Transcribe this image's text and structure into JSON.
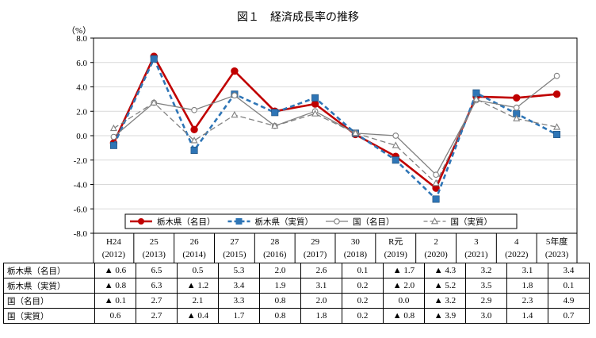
{
  "chart_data": {
    "type": "line",
    "title": "図１　経済成長率の推移",
    "ylabel": "（%）",
    "ylim": [
      -8.0,
      8.0
    ],
    "yticks": [
      "8.0",
      "6.0",
      "4.0",
      "2.0",
      "0.0",
      "-2.0",
      "-4.0",
      "-6.0",
      "-8.0"
    ],
    "ytick_values": [
      8,
      6,
      4,
      2,
      0,
      -2,
      -4,
      -6,
      -8
    ],
    "categories": [
      {
        "era": "H24",
        "year": "(2012)"
      },
      {
        "era": "25",
        "year": "(2013)"
      },
      {
        "era": "26",
        "year": "(2014)"
      },
      {
        "era": "27",
        "year": "(2015)"
      },
      {
        "era": "28",
        "year": "(2016)"
      },
      {
        "era": "29",
        "year": "(2017)"
      },
      {
        "era": "30",
        "year": "(2018)"
      },
      {
        "era": "R元",
        "year": "(2019)"
      },
      {
        "era": "2",
        "year": "(2020)"
      },
      {
        "era": "3",
        "year": "(2021)"
      },
      {
        "era": "4",
        "year": "(2022)"
      },
      {
        "era": "5年度",
        "year": "(2023)"
      }
    ],
    "legend_position": "bottom-inside",
    "series": [
      {
        "name": "栃木県（名目）",
        "color": "#c00000",
        "style": "solid-bold",
        "marker": "circle",
        "values": [
          -0.6,
          6.5,
          0.5,
          5.3,
          2.0,
          2.6,
          0.1,
          -1.7,
          -4.3,
          3.2,
          3.1,
          3.4
        ],
        "labels": [
          "▲ 0.6",
          "6.5",
          "0.5",
          "5.3",
          "2.0",
          "2.6",
          "0.1",
          "▲ 1.7",
          "▲ 4.3",
          "3.2",
          "3.1",
          "3.4"
        ]
      },
      {
        "name": "栃木県（実質）",
        "color": "#2e75b6",
        "style": "dashed-bold",
        "marker": "square",
        "values": [
          -0.8,
          6.3,
          -1.2,
          3.4,
          1.9,
          3.1,
          0.2,
          -2.0,
          -5.2,
          3.5,
          1.8,
          0.1
        ],
        "labels": [
          "▲ 0.8",
          "6.3",
          "▲ 1.2",
          "3.4",
          "1.9",
          "3.1",
          "0.2",
          "▲ 2.0",
          "▲ 5.2",
          "3.5",
          "1.8",
          "0.1"
        ]
      },
      {
        "name": "国（名目）",
        "color": "#808080",
        "style": "solid",
        "marker": "circle-open",
        "values": [
          -0.1,
          2.7,
          2.1,
          3.3,
          0.8,
          2.0,
          0.2,
          0.0,
          -3.2,
          2.9,
          2.3,
          4.9
        ],
        "labels": [
          "▲ 0.1",
          "2.7",
          "2.1",
          "3.3",
          "0.8",
          "2.0",
          "0.2",
          "0.0",
          "▲ 3.2",
          "2.9",
          "2.3",
          "4.9"
        ]
      },
      {
        "name": "国（実質）",
        "color": "#808080",
        "style": "dashed",
        "marker": "triangle-open",
        "values": [
          0.6,
          2.7,
          -0.4,
          1.7,
          0.8,
          1.8,
          0.2,
          -0.8,
          -3.9,
          3.0,
          1.4,
          0.7
        ],
        "labels": [
          "0.6",
          "2.7",
          "▲ 0.4",
          "1.7",
          "0.8",
          "1.8",
          "0.2",
          "▲ 0.8",
          "▲ 3.9",
          "3.0",
          "1.4",
          "0.7"
        ]
      }
    ]
  }
}
